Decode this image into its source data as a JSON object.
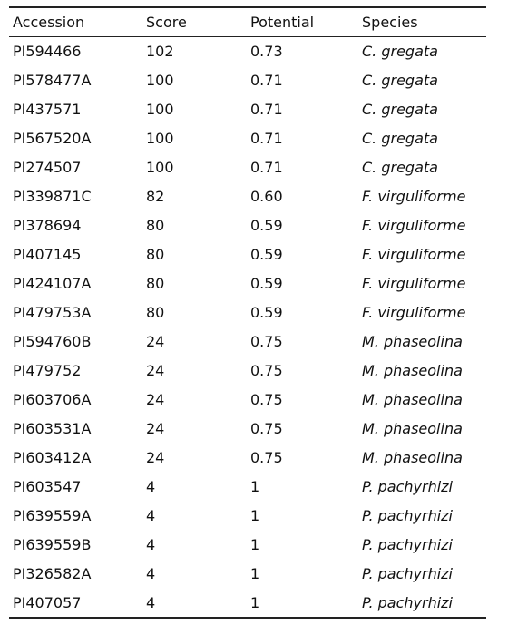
{
  "table": {
    "headers": [
      "Accession",
      "Score",
      "Potential",
      "Species"
    ],
    "rows": [
      [
        "PI594466",
        "102",
        "0.73",
        "C. gregata"
      ],
      [
        "PI578477A",
        "100",
        "0.71",
        "C. gregata"
      ],
      [
        "PI437571",
        "100",
        "0.71",
        "C. gregata"
      ],
      [
        "PI567520A",
        "100",
        "0.71",
        "C. gregata"
      ],
      [
        "PI274507",
        "100",
        "0.71",
        "C. gregata"
      ],
      [
        "PI339871C",
        "82",
        "0.60",
        "F. virguliforme"
      ],
      [
        "PI378694",
        "80",
        "0.59",
        "F. virguliforme"
      ],
      [
        "PI407145",
        "80",
        "0.59",
        "F. virguliforme"
      ],
      [
        "PI424107A",
        "80",
        "0.59",
        "F. virguliforme"
      ],
      [
        "PI479753A",
        "80",
        "0.59",
        "F. virguliforme"
      ],
      [
        "PI594760B",
        "24",
        "0.75",
        "M. phaseolina"
      ],
      [
        "PI479752",
        "24",
        "0.75",
        "M. phaseolina"
      ],
      [
        "PI603706A",
        "24",
        "0.75",
        "M. phaseolina"
      ],
      [
        "PI603531A",
        "24",
        "0.75",
        "M. phaseolina"
      ],
      [
        "PI603412A",
        "24",
        "0.75",
        "M. phaseolina"
      ],
      [
        "PI603547",
        "4",
        "1",
        "P. pachyrhizi"
      ],
      [
        "PI639559A",
        "4",
        "1",
        "P. pachyrhizi"
      ],
      [
        "PI639559B",
        "4",
        "1",
        "P. pachyrhizi"
      ],
      [
        "PI326582A",
        "4",
        "1",
        "P. pachyrhizi"
      ],
      [
        "PI407057",
        "4",
        "1",
        "P. pachyrhizi"
      ]
    ]
  }
}
